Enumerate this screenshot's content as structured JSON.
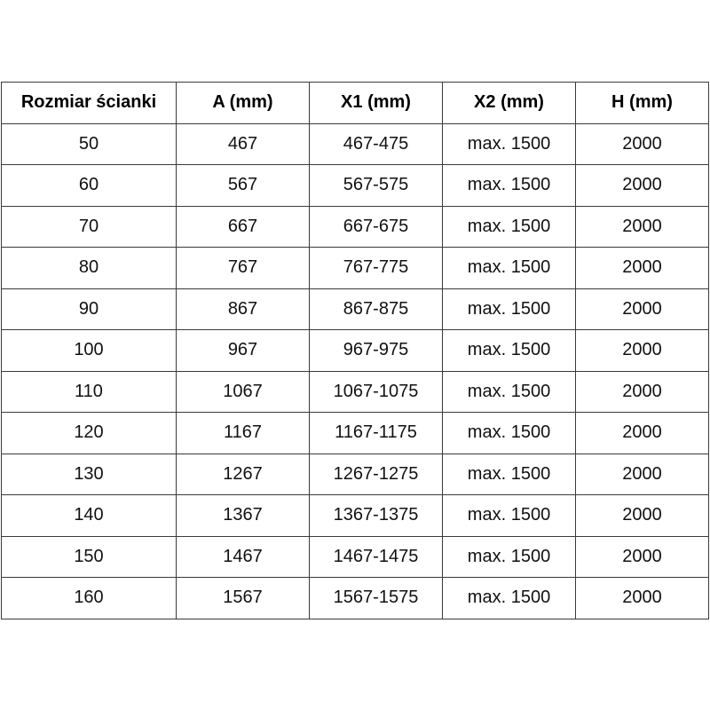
{
  "headers": [
    "Rozmiar ścianki",
    "A (mm)",
    "X1 (mm)",
    "X2 (mm)",
    "H (mm)"
  ],
  "rows": [
    [
      "50",
      "467",
      "467-475",
      "max. 1500",
      "2000"
    ],
    [
      "60",
      "567",
      "567-575",
      "max. 1500",
      "2000"
    ],
    [
      "70",
      "667",
      "667-675",
      "max. 1500",
      "2000"
    ],
    [
      "80",
      "767",
      "767-775",
      "max. 1500",
      "2000"
    ],
    [
      "90",
      "867",
      "867-875",
      "max. 1500",
      "2000"
    ],
    [
      "100",
      "967",
      "967-975",
      "max. 1500",
      "2000"
    ],
    [
      "110",
      "1067",
      "1067-1075",
      "max. 1500",
      "2000"
    ],
    [
      "120",
      "1167",
      "1167-1175",
      "max. 1500",
      "2000"
    ],
    [
      "130",
      "1267",
      "1267-1275",
      "max. 1500",
      "2000"
    ],
    [
      "140",
      "1367",
      "1367-1375",
      "max. 1500",
      "2000"
    ],
    [
      "150",
      "1467",
      "1467-1475",
      "max. 1500",
      "2000"
    ],
    [
      "160",
      "1567",
      "1567-1575",
      "max. 1500",
      "2000"
    ]
  ]
}
